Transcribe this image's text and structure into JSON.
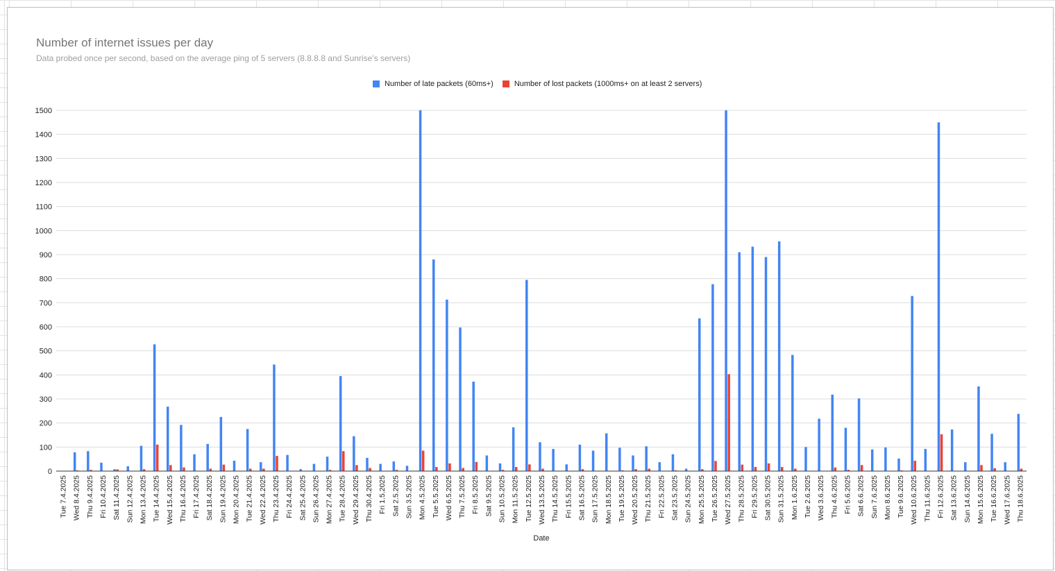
{
  "colors": {
    "late": "#4285f4",
    "lost": "#ea4335",
    "grid": "#dcdcdc",
    "axis": "#333333",
    "text": "#222222"
  },
  "chart_data": {
    "type": "bar",
    "title": "Number of internet issues per day",
    "subtitle": "Data probed once per second, based on the average ping of 5 servers (8.8.8.8 and Sunrise's servers)",
    "xlabel": "Date",
    "ylabel": "",
    "ylim": [
      0,
      1500
    ],
    "yticks": [
      0,
      100,
      200,
      300,
      400,
      500,
      600,
      700,
      800,
      900,
      1000,
      1100,
      1200,
      1300,
      1400,
      1500
    ],
    "grid": true,
    "legend_position": "top",
    "categories": [
      "Tue 7.4.2025",
      "Wed 8.4.2025",
      "Thu 9.4.2025",
      "Fri 10.4.2025",
      "Sat 11.4.2025",
      "Sun 12.4.2025",
      "Mon 13.4.2025",
      "Tue 14.4.2025",
      "Wed 15.4.2025",
      "Thu 16.4.2025",
      "Fri 17.4.2025",
      "Sat 18.4.2025",
      "Sun 19.4.2025",
      "Mon 20.4.2025",
      "Tue 21.4.2025",
      "Wed 22.4.2025",
      "Thu 23.4.2025",
      "Fri 24.4.2025",
      "Sat 25.4.2025",
      "Sun 26.4.2025",
      "Mon 27.4.2025",
      "Tue 28.4.2025",
      "Wed 29.4.2025",
      "Thu 30.4.2025",
      "Fri 1.5.2025",
      "Sat 2.5.2025",
      "Sun 3.5.2025",
      "Mon 4.5.2025",
      "Tue 5.5.2025",
      "Wed 6.5.2025",
      "Thu 7.5.2025",
      "Fri 8.5.2025",
      "Sat 9.5.2025",
      "Sun 10.5.2025",
      "Mon 11.5.2025",
      "Tue 12.5.2025",
      "Wed 13.5.2025",
      "Thu 14.5.2025",
      "Fri 15.5.2025",
      "Sat 16.5.2025",
      "Sun 17.5.2025",
      "Mon 18.5.2025",
      "Tue 19.5.2025",
      "Wed 20.5.2025",
      "Thu 21.5.2025",
      "Fri 22.5.2025",
      "Sat 23.5.2025",
      "Sun 24.5.2025",
      "Mon 25.5.2025",
      "Tue 26.5.2025",
      "Wed 27.5.2025",
      "Thu 28.5.2025",
      "Fri 29.5.2025",
      "Sat 30.5.2025",
      "Sun 31.5.2025",
      "Mon 1.6.2025",
      "Tue 2.6.2025",
      "Wed 3.6.2025",
      "Thu 4.6.2025",
      "Fri 5.6.2025",
      "Sat 6.6.2025",
      "Sun 7.6.2025",
      "Mon 8.6.2025",
      "Tue 9.6.2025",
      "Wed 10.6.2025",
      "Thu 11.6.2025",
      "Fri 12.6.2025",
      "Sat 13.6.2025",
      "Sun 14.6.2025",
      "Mon 15.6.2025",
      "Tue 16.6.2025",
      "Wed 17.6.2025",
      "Thu 18.6.2025"
    ],
    "series": [
      {
        "name": "Number of late packets (60ms+)",
        "values": [
          0,
          78,
          83,
          35,
          8,
          20,
          105,
          527,
          268,
          192,
          70,
          113,
          225,
          43,
          175,
          37,
          443,
          67,
          8,
          30,
          60,
          395,
          145,
          55,
          30,
          40,
          22,
          1500,
          880,
          713,
          597,
          372,
          65,
          32,
          182,
          795,
          120,
          92,
          28,
          110,
          85,
          157,
          97,
          65,
          103,
          37,
          70,
          10,
          635,
          777,
          1500,
          910,
          933,
          890,
          955,
          483,
          100,
          218,
          318,
          180,
          302,
          90,
          98,
          52,
          728,
          92,
          1450,
          173,
          37,
          352,
          155,
          37,
          238
        ]
      },
      {
        "name": "Number of lost packets (1000ms+ on at least 2 servers)",
        "values": [
          0,
          3,
          5,
          0,
          7,
          0,
          8,
          110,
          25,
          15,
          0,
          10,
          27,
          0,
          10,
          10,
          63,
          0,
          0,
          0,
          5,
          83,
          25,
          13,
          0,
          5,
          0,
          85,
          17,
          32,
          13,
          38,
          0,
          5,
          17,
          28,
          10,
          0,
          0,
          8,
          0,
          0,
          3,
          8,
          10,
          0,
          3,
          0,
          8,
          42,
          403,
          27,
          17,
          32,
          17,
          10,
          0,
          0,
          15,
          5,
          25,
          0,
          0,
          3,
          43,
          0,
          153,
          0,
          0,
          25,
          12,
          0,
          10
        ]
      }
    ]
  }
}
